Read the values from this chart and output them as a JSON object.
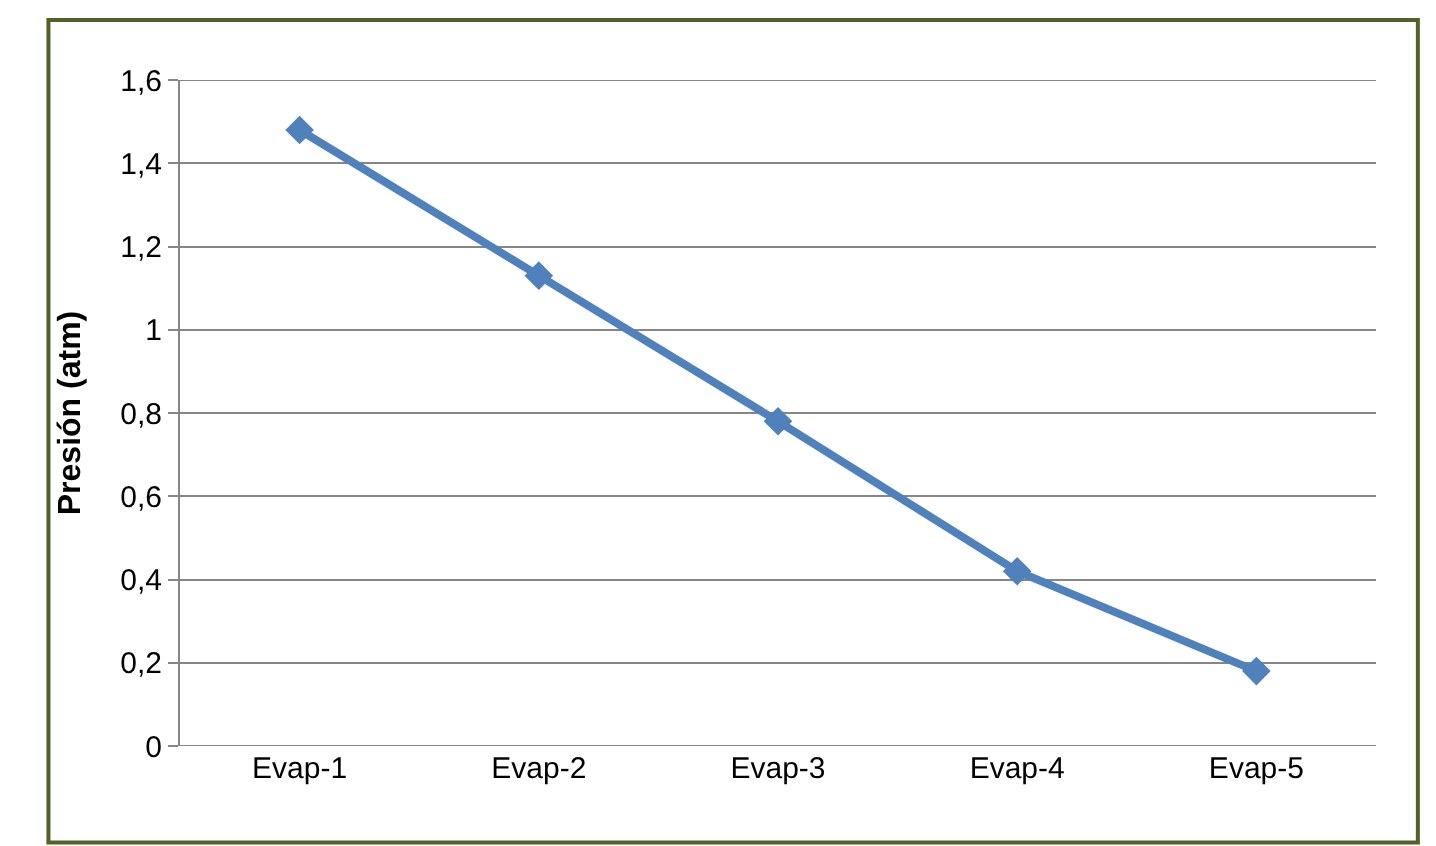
{
  "chart_data": {
    "type": "line",
    "ylabel": "Presión (atm)",
    "categories": [
      "Evap-1",
      "Evap-2",
      "Evap-3",
      "Evap-4",
      "Evap-5"
    ],
    "series": [
      {
        "color": "#4f81bd",
        "values": [
          1.48,
          1.13,
          0.78,
          0.42,
          0.18
        ]
      }
    ],
    "ylim": [
      0,
      1.6
    ],
    "yticks": [
      0,
      {
        "value": 0.2,
        "label": "0,2"
      },
      {
        "value": 0.4,
        "label": "0,4"
      },
      {
        "value": 0.6,
        "label": "0,6"
      },
      {
        "value": 0.8,
        "label": "0,8"
      },
      1,
      {
        "value": 1.2,
        "label": "1,2"
      },
      {
        "value": 1.4,
        "label": "1,4"
      },
      {
        "value": 1.6,
        "label": "1,6"
      }
    ],
    "grid": "y",
    "marker": "diamond",
    "line_style": "solid"
  }
}
